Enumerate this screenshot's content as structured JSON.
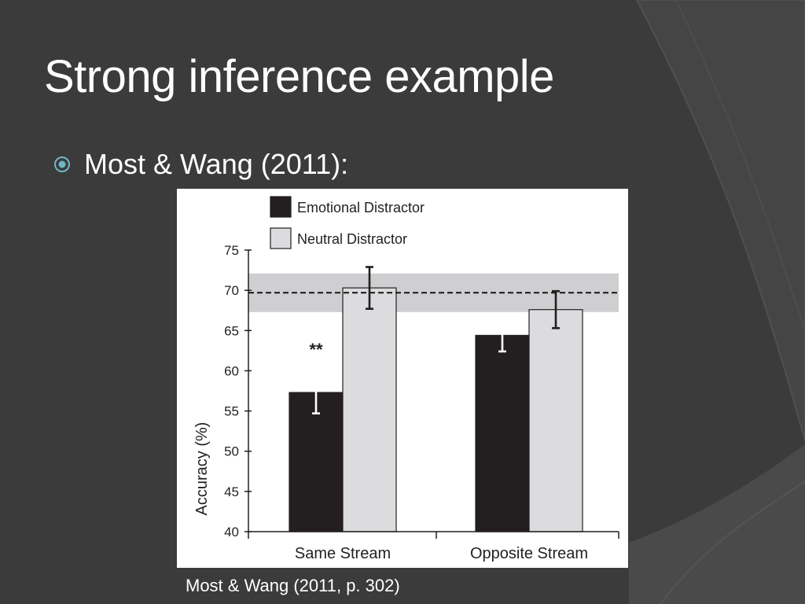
{
  "slide": {
    "title": "Strong inference example",
    "bullet": "Most & Wang (2011):",
    "caption": "Most & Wang (2011, p. 302)"
  },
  "colors": {
    "background": "#3b3b3b",
    "emotional": "#231f20",
    "neutral": "#dcdcde",
    "band": "#cfcfd1"
  },
  "chart_data": {
    "type": "bar",
    "title": "",
    "xlabel": "",
    "ylabel": "Accuracy (%)",
    "ylim": [
      40,
      75
    ],
    "yticks": [
      40,
      45,
      50,
      55,
      60,
      65,
      70,
      75
    ],
    "categories": [
      "Same Stream",
      "Opposite Stream"
    ],
    "series": [
      {
        "name": "Emotional Distractor",
        "values": [
          57.3,
          64.4
        ],
        "errors": [
          2.6,
          2.0
        ],
        "color": "#231f20"
      },
      {
        "name": "Neutral Distractor",
        "values": [
          70.3,
          67.6
        ],
        "errors": [
          2.6,
          2.3
        ],
        "color": "#dcdcde"
      }
    ],
    "baseline": {
      "value": 69.7,
      "band": [
        67.3,
        72.1
      ]
    },
    "annotations": [
      {
        "text": "**",
        "category": 0
      }
    ],
    "legend": "top-left",
    "grid": false
  }
}
